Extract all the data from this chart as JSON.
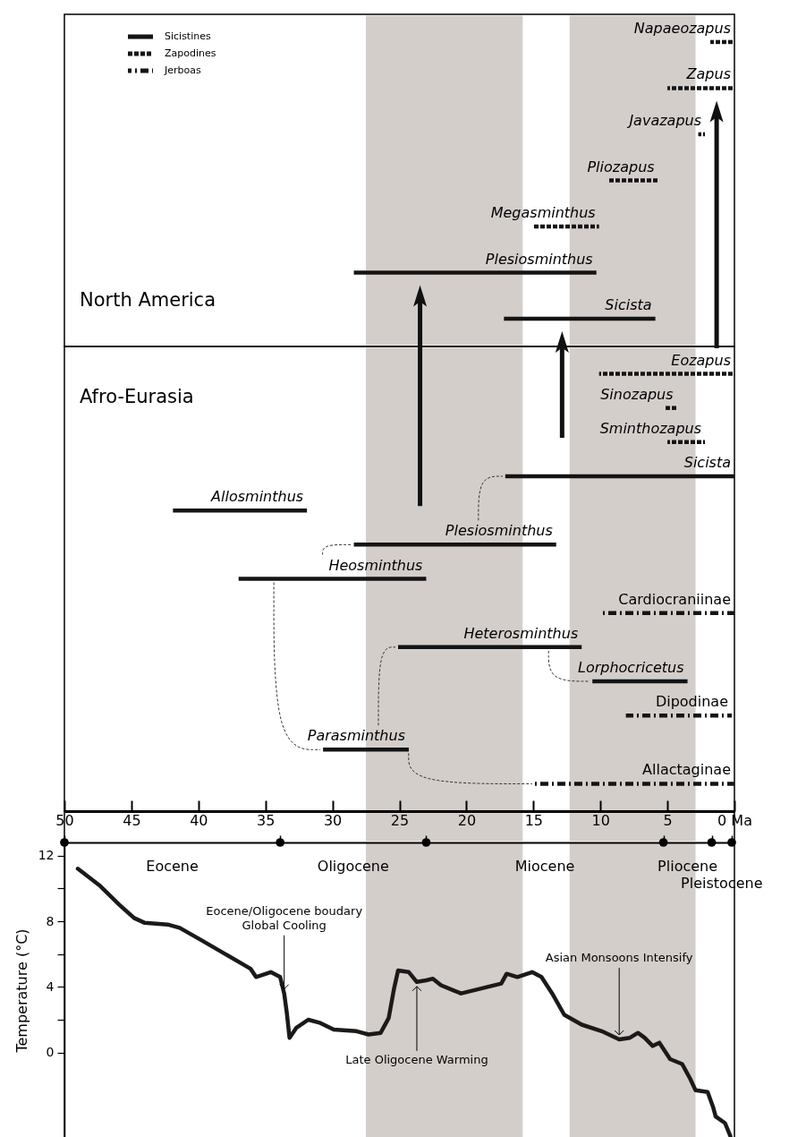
{
  "chart_data": [
    {
      "type": "bar",
      "orientation": "horizontal",
      "title": "North America",
      "categories": [
        "Napaeozapus",
        "Zapus",
        "Javazapus",
        "Pliozapus",
        "Megasminthus",
        "Plesiosminthus",
        "Sicista"
      ],
      "series": [
        {
          "name": "Sicistines",
          "color": "#141414",
          "line_style": "solid",
          "base": [
            null,
            null,
            null,
            null,
            null,
            10.3,
            5.9
          ],
          "values": [
            null,
            null,
            null,
            null,
            null,
            18.1,
            11.3
          ]
        },
        {
          "name": "Zapodines",
          "color": "#141414",
          "line_style": "dashed",
          "base": [
            0,
            0,
            2.2,
            5.7,
            10.1,
            null,
            null
          ],
          "values": [
            1.8,
            5.0,
            0.5,
            3.7,
            4.9,
            null,
            null
          ]
        },
        {
          "name": "Jerboas",
          "color": "#141414",
          "line_style": "dashdot",
          "values": [
            null,
            null,
            null,
            null,
            null,
            null,
            null
          ]
        }
      ],
      "xlim": [
        50,
        0
      ],
      "tick_labels": "y",
      "legend": "top left",
      "bands": [
        {
          "axis": "x",
          "from": 27.5,
          "to": 15.8,
          "color": "#d4cecb"
        },
        {
          "axis": "x",
          "from": 12.3,
          "to": 2.9,
          "color": "#d4cecb"
        }
      ]
    },
    {
      "type": "bar",
      "orientation": "horizontal",
      "title": "Afro-Eurasia",
      "categories": [
        "Eozapus",
        "Sinozapus",
        "Sminthozapus",
        "Sicista",
        "Allosminthus",
        "Plesiosminthus",
        "Heosminthus",
        "Cardiocraniinae",
        "Heterosminthus",
        "Lorphocricetus",
        "Dipodinae",
        "Parasminthus",
        "Allactaginae"
      ],
      "series": [
        {
          "color": "#141414",
          "line_style": "solid",
          "base": [
            null,
            null,
            null,
            0,
            31.9,
            13.3,
            23.0,
            null,
            11.4,
            3.5,
            null,
            24.3,
            null
          ],
          "values": [
            null,
            null,
            null,
            17.1,
            10.0,
            15.1,
            14.0,
            null,
            13.7,
            7.1,
            null,
            6.4,
            null
          ]
        },
        {
          "color": "#141414",
          "line_style": "dashed",
          "base": [
            0,
            4.3,
            2.2,
            null,
            null,
            null,
            null,
            null,
            null,
            null,
            null,
            null,
            null
          ],
          "values": [
            10.1,
            0.9,
            2.8,
            null,
            null,
            null,
            null,
            null,
            null,
            null,
            null,
            null,
            null
          ]
        },
        {
          "color": "#141414",
          "line_style": "dashdot",
          "base": [
            null,
            null,
            null,
            null,
            null,
            null,
            null,
            0,
            null,
            null,
            0.2,
            null,
            0
          ],
          "values": [
            null,
            null,
            null,
            null,
            null,
            null,
            null,
            9.9,
            null,
            null,
            7.9,
            null,
            14.9
          ]
        }
      ],
      "xlim": [
        50,
        0
      ],
      "xticks": [
        50,
        45,
        40,
        35,
        30,
        25,
        20,
        15,
        10,
        5,
        {
          "value": 0,
          "label": "0 Ma"
        }
      ],
      "bands": [
        {
          "axis": "x",
          "from": 27.5,
          "to": 15.8,
          "color": "#d4cecb"
        },
        {
          "axis": "x",
          "from": 12.3,
          "to": 2.9,
          "color": "#d4cecb"
        }
      ]
    },
    {
      "type": "line",
      "ylabel": "Temperature (°C)",
      "color": "#1c1a19",
      "x": [
        49.0,
        47.4,
        45.9,
        44.8,
        44.0,
        42.3,
        41.4,
        39.9,
        38.0,
        36.1,
        35.7,
        34.6,
        33.9,
        33.6,
        33.4,
        33.2,
        32.7,
        31.8,
        30.9,
        29.9,
        28.2,
        27.3,
        26.4,
        25.8,
        25.4,
        25.1,
        24.3,
        23.7,
        23.0,
        22.5,
        21.9,
        20.4,
        18.9,
        17.4,
        17.0,
        16.2,
        15.1,
        14.4,
        13.6,
        12.7,
        11.4,
        9.9,
        8.6,
        7.8,
        7.2,
        6.7,
        6.1,
        5.6,
        4.8,
        3.9,
        3.3,
        2.9,
        2.0,
        1.6,
        1.4,
        0.7,
        0.3
      ],
      "values": [
        11.2,
        10.2,
        9.0,
        8.2,
        7.9,
        7.8,
        7.6,
        6.9,
        6.0,
        5.1,
        4.6,
        4.9,
        4.6,
        3.6,
        2.4,
        0.9,
        1.5,
        2.0,
        1.8,
        1.4,
        1.3,
        1.1,
        1.2,
        2.1,
        3.9,
        5.0,
        4.9,
        4.3,
        4.4,
        4.5,
        4.1,
        3.6,
        3.9,
        4.2,
        4.8,
        4.6,
        4.9,
        4.6,
        3.6,
        2.3,
        1.7,
        1.3,
        0.8,
        0.9,
        1.2,
        0.9,
        0.4,
        0.6,
        -0.4,
        -0.7,
        -1.6,
        -2.3,
        -2.4,
        -3.3,
        -3.9,
        -4.3,
        -5.1
      ],
      "xlim": [
        50,
        0
      ],
      "xticks": [
        {
          "value": 50,
          "label": null
        },
        {
          "value": 33.9,
          "label": null
        },
        {
          "value": 23.0,
          "label": null
        },
        {
          "value": 5.3,
          "label": null
        },
        {
          "value": 1.7,
          "label": null
        },
        {
          "value": 0.2,
          "label": null
        }
      ],
      "ylim": [
        -5.2,
        12.8
      ],
      "yticks": [
        12,
        {
          "value": 10,
          "label": null
        },
        8,
        {
          "value": 6,
          "label": null
        },
        4,
        {
          "value": 2,
          "label": null
        },
        0
      ],
      "tick_labels": "y",
      "bands": [
        {
          "axis": "x",
          "from": 27.5,
          "to": 15.8,
          "color": "#d4cecb"
        },
        {
          "axis": "x",
          "from": 12.3,
          "to": 2.9,
          "color": "#d4cecb"
        }
      ],
      "annotations": [
        {
          "text": "Eocene/Oligocene boudary\nGlobal Cooling",
          "x": 33.6,
          "y": 3.6
        },
        {
          "text": "Late Oligocene Warming",
          "x": 23.7,
          "y": 4.3
        },
        {
          "text": "Asian Monsoons Intensify",
          "x": 8.6,
          "y": 0.8
        },
        "Eocene",
        "Oligocene",
        "Miocene",
        "Pliocene",
        "Pleistocene"
      ]
    }
  ]
}
